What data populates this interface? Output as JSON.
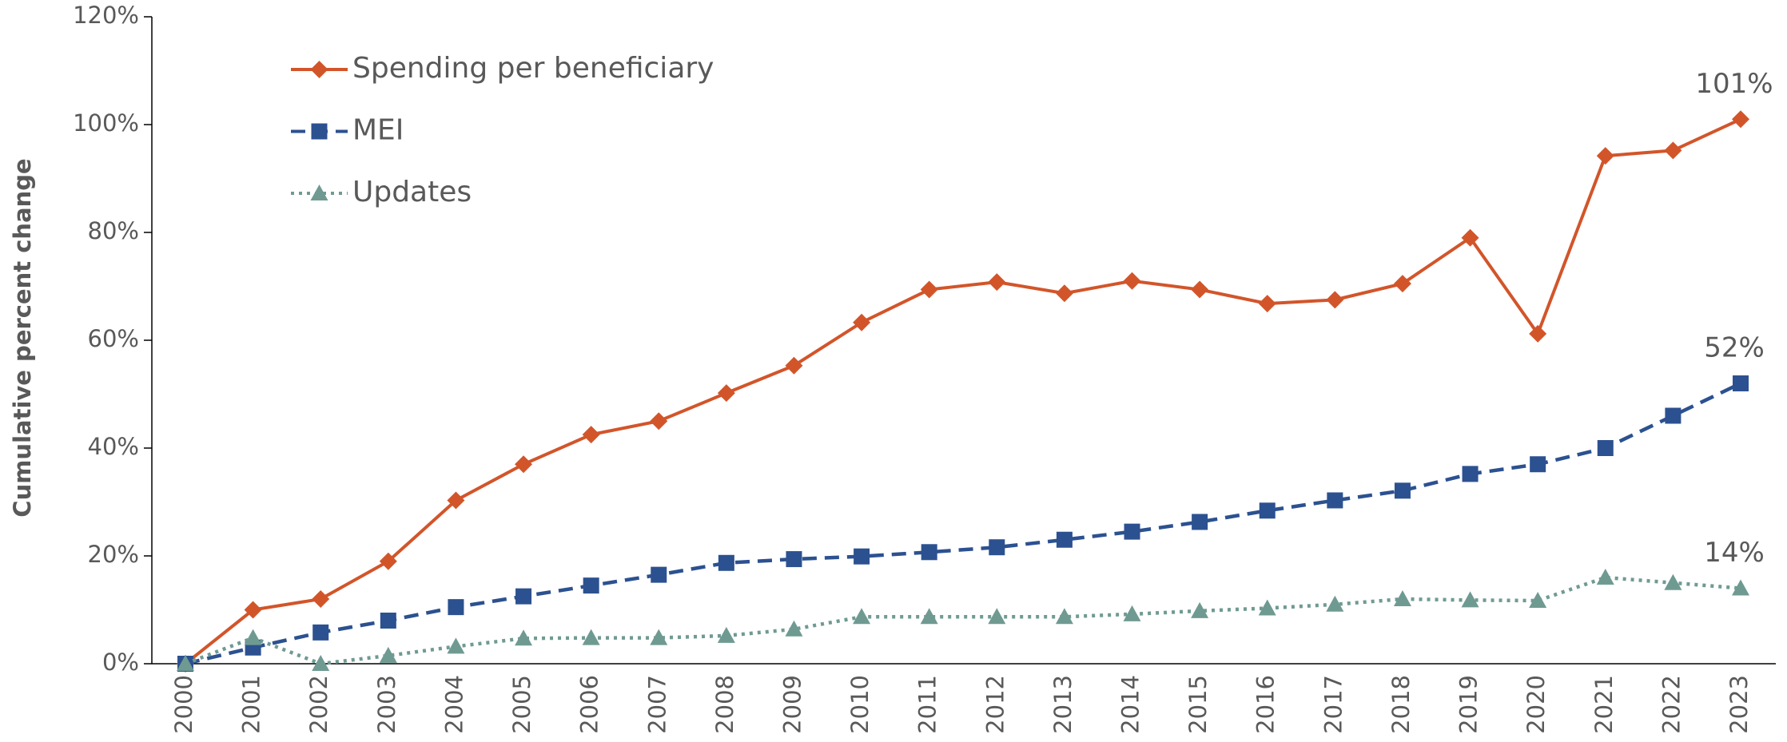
{
  "chart_data": {
    "type": "line",
    "y_label": "Cumulative percent change",
    "categories": [
      "2000",
      "2001",
      "2002",
      "2003",
      "2004",
      "2005",
      "2006",
      "2007",
      "2008",
      "2009",
      "2010",
      "2011",
      "2012",
      "2013",
      "2014",
      "2015",
      "2016",
      "2017",
      "2018",
      "2019",
      "2020",
      "2021",
      "2022",
      "2023"
    ],
    "series": [
      {
        "name": "Spending per beneficiary",
        "color": "#d2552a",
        "marker": "diamond",
        "line_style": "solid",
        "values": [
          0,
          10,
          12,
          19,
          30.3,
          37,
          42.5,
          45,
          50.2,
          55.3,
          63.3,
          69.4,
          70.8,
          68.7,
          71,
          69.4,
          66.8,
          67.5,
          70.5,
          79,
          61.2,
          94.2,
          95.2,
          101
        ],
        "value_labels": [
          null,
          null,
          null,
          null,
          null,
          null,
          null,
          null,
          null,
          null,
          null,
          null,
          null,
          null,
          null,
          null,
          null,
          null,
          null,
          null,
          null,
          null,
          null,
          "101%"
        ]
      },
      {
        "name": "MEI",
        "color": "#2c5190",
        "marker": "square",
        "line_style": "dashed",
        "values": [
          0,
          3,
          5.8,
          8,
          10.5,
          12.5,
          14.5,
          16.5,
          18.7,
          19.4,
          19.9,
          20.7,
          21.6,
          23,
          24.5,
          26.3,
          28.4,
          30.3,
          32.1,
          35.2,
          37,
          40,
          46,
          52
        ],
        "value_labels": [
          null,
          null,
          null,
          null,
          null,
          null,
          null,
          null,
          null,
          null,
          null,
          null,
          null,
          null,
          null,
          null,
          null,
          null,
          null,
          null,
          null,
          null,
          null,
          "52%"
        ]
      },
      {
        "name": "Updates",
        "color": "#6f9a92",
        "marker": "triangle",
        "line_style": "dotted",
        "values": [
          0,
          4.8,
          0,
          1.5,
          3.2,
          4.7,
          4.8,
          4.8,
          5.2,
          6.4,
          8.7,
          8.7,
          8.7,
          8.7,
          9.2,
          9.8,
          10.3,
          11,
          12,
          11.8,
          11.7,
          16,
          15,
          14
        ],
        "value_labels": [
          null,
          null,
          null,
          null,
          null,
          null,
          null,
          null,
          null,
          null,
          null,
          null,
          null,
          null,
          null,
          null,
          null,
          null,
          null,
          null,
          null,
          null,
          null,
          "14%"
        ]
      }
    ],
    "ylim": [
      0,
      120
    ],
    "yticks": [
      {
        "value": 0,
        "label": "0%"
      },
      {
        "value": 20,
        "label": "20%"
      },
      {
        "value": 40,
        "label": "40%"
      },
      {
        "value": 60,
        "label": "60%"
      },
      {
        "value": 80,
        "label": "80%"
      },
      {
        "value": 100,
        "label": "100%"
      },
      {
        "value": 120,
        "label": "120%"
      }
    ],
    "legend": "upper left"
  }
}
